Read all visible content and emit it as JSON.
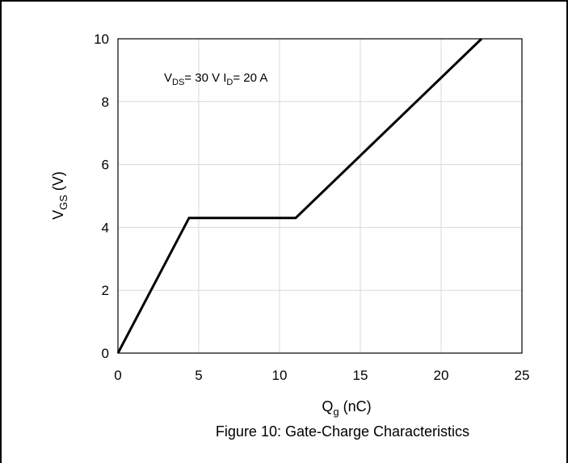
{
  "chart_data": {
    "type": "line",
    "title": "",
    "caption": "Figure 10: Gate-Charge Characteristics",
    "xlabel": {
      "main": "Q",
      "sub": "g",
      "rest": " (nC)"
    },
    "ylabel": {
      "main": "V",
      "sub": "GS",
      "rest": " (V)"
    },
    "annotation": {
      "p1": "V",
      "s1": "DS",
      "p2": "= 30 V I",
      "s2": "D",
      "p3": "= 20 A"
    },
    "xlim": [
      0,
      25
    ],
    "ylim": [
      0,
      10
    ],
    "xticks": [
      0,
      5,
      10,
      15,
      20,
      25
    ],
    "yticks": [
      0,
      2,
      4,
      6,
      8,
      10
    ],
    "xtick_labels": [
      "0",
      "5",
      "10",
      "15",
      "20",
      "25"
    ],
    "ytick_labels": [
      "0",
      "2",
      "4",
      "6",
      "8",
      "10"
    ],
    "grid": true,
    "legend": "none",
    "series": [
      {
        "x": [
          0,
          4.4,
          11.0,
          22.5
        ],
        "y": [
          0,
          4.3,
          4.3,
          10
        ],
        "color": "#000000"
      }
    ]
  }
}
